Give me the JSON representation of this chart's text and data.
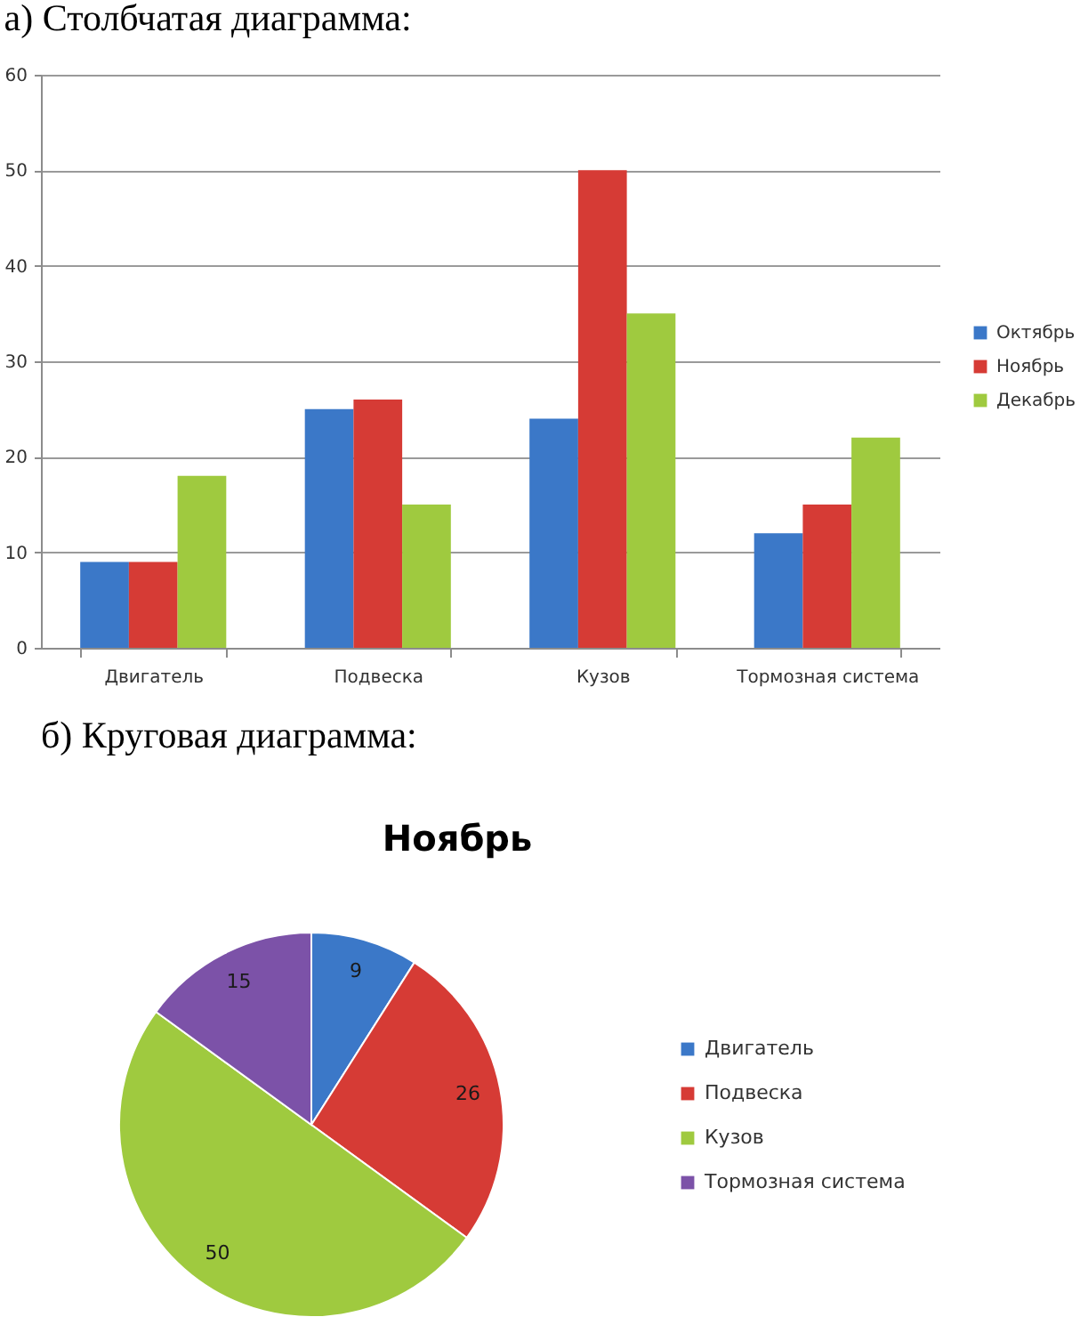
{
  "chart_data": [
    {
      "type": "bar",
      "title": "а) Столбчатая диаграмма:",
      "categories": [
        "Двигатель",
        "Подвеска",
        "Кузов",
        "Тормозная система"
      ],
      "series": [
        {
          "name": "Октябрь",
          "color": "#3b78c8",
          "values": [
            9,
            25,
            24,
            12
          ]
        },
        {
          "name": "Ноябрь",
          "color": "#d63b35",
          "values": [
            9,
            26,
            50,
            15
          ]
        },
        {
          "name": "Декабрь",
          "color": "#9fca3f",
          "values": [
            18,
            15,
            35,
            22
          ]
        }
      ],
      "ylim": [
        0,
        60
      ],
      "yticks": [
        0,
        10,
        20,
        30,
        40,
        50,
        60
      ],
      "grid": "y",
      "legend": "right"
    },
    {
      "type": "pie",
      "title": "б) Круговая диаграмма:",
      "subtitle": "Ноябрь",
      "categories": [
        "Двигатель",
        "Подвеска",
        "Кузов",
        "Тормозная система"
      ],
      "values": [
        9,
        26,
        50,
        15
      ],
      "colors": [
        "#3b78c8",
        "#d63b35",
        "#9fca3f",
        "#7c52a8"
      ],
      "data_labels": true,
      "legend": "right"
    }
  ]
}
